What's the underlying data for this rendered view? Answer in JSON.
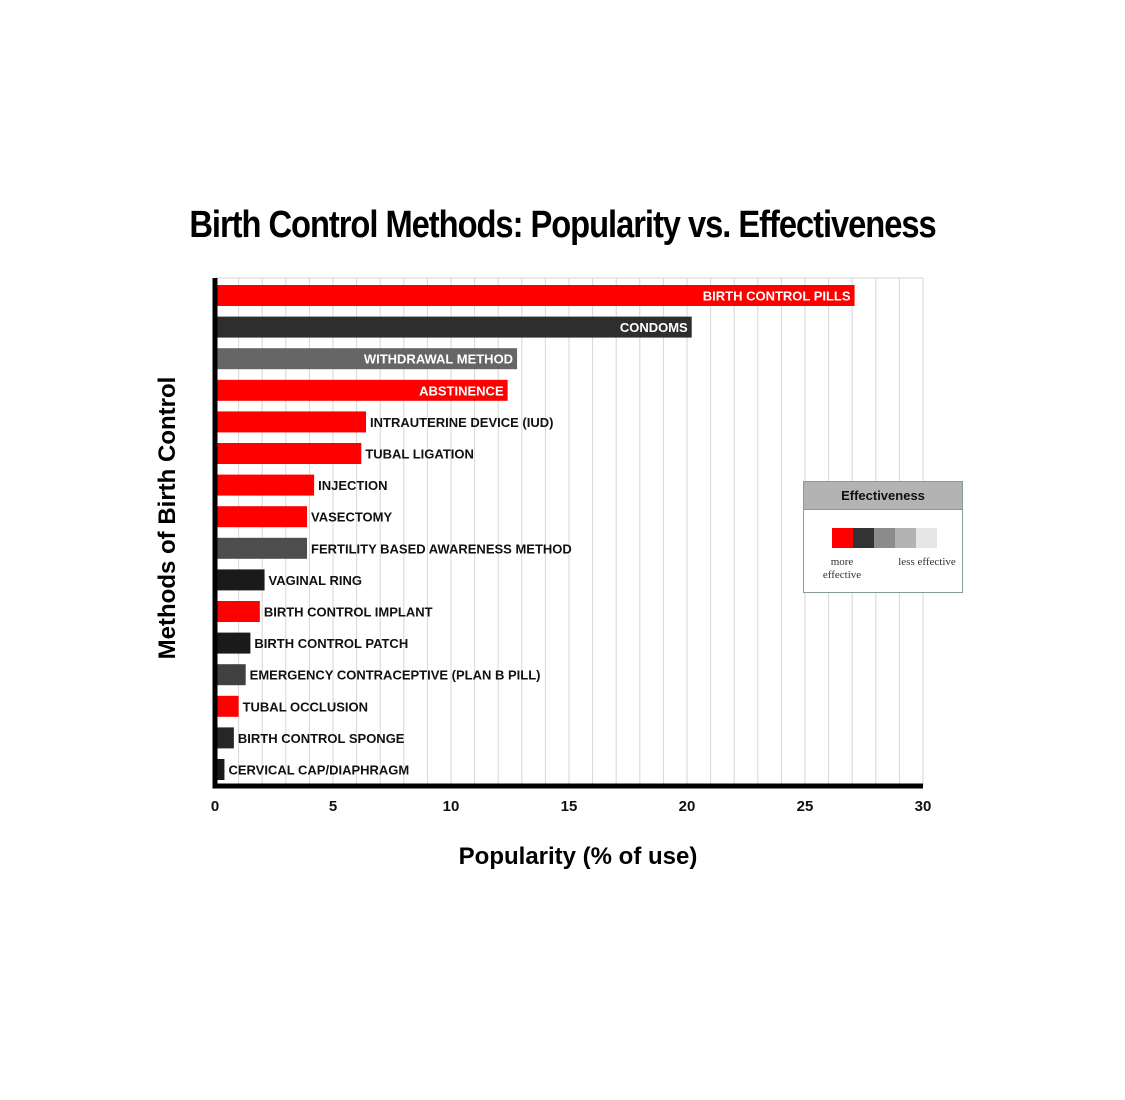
{
  "chart_data": {
    "type": "bar",
    "orientation": "horizontal",
    "title": "Birth Control Methods: Popularity vs. Effectiveness",
    "xlabel": "Popularity (% of use)",
    "ylabel": "Methods of Birth Control",
    "xlim": [
      0,
      30
    ],
    "xticks": [
      0,
      5,
      10,
      15,
      20,
      25,
      30
    ],
    "grid": true,
    "categories": [
      "BIRTH CONTROL PILLS",
      "CONDOMS",
      "WITHDRAWAL METHOD",
      "ABSTINENCE",
      "INTRAUTERINE DEVICE (IUD)",
      "TUBAL LIGATION",
      "INJECTION",
      "VASECTOMY",
      "FERTILITY BASED AWARENESS METHOD",
      "VAGINAL RING",
      "BIRTH CONTROL IMPLANT",
      "BIRTH CONTROL PATCH",
      "EMERGENCY CONTRACEPTIVE (PLAN B PILL)",
      "TUBAL OCCLUSION",
      "BIRTH CONTROL SPONGE",
      "CERVICAL CAP/DIAPHRAGM"
    ],
    "values": [
      27.1,
      20.2,
      12.8,
      12.4,
      6.4,
      6.2,
      4.2,
      3.9,
      3.9,
      2.1,
      1.9,
      1.5,
      1.3,
      1.0,
      0.8,
      0.4
    ],
    "colors": [
      "#ff0000",
      "#2e2e2e",
      "#666666",
      "#ff0000",
      "#ff0000",
      "#ff0000",
      "#ff0000",
      "#ff0000",
      "#4d4d4d",
      "#1a1a1a",
      "#ff0000",
      "#1a1a1a",
      "#404040",
      "#ff0000",
      "#262626",
      "#1a1a1a"
    ],
    "label_inside": [
      true,
      true,
      true,
      true,
      false,
      false,
      false,
      false,
      false,
      false,
      false,
      false,
      false,
      false,
      false,
      false
    ],
    "legend": {
      "title": "Effectiveness",
      "placement": "right",
      "scale_colors": [
        "#ff0000",
        "#333333",
        "#8c8c8c",
        "#b3b3b3",
        "#e6e6e6"
      ],
      "low_label": "more effective",
      "high_label": "less effective"
    }
  }
}
